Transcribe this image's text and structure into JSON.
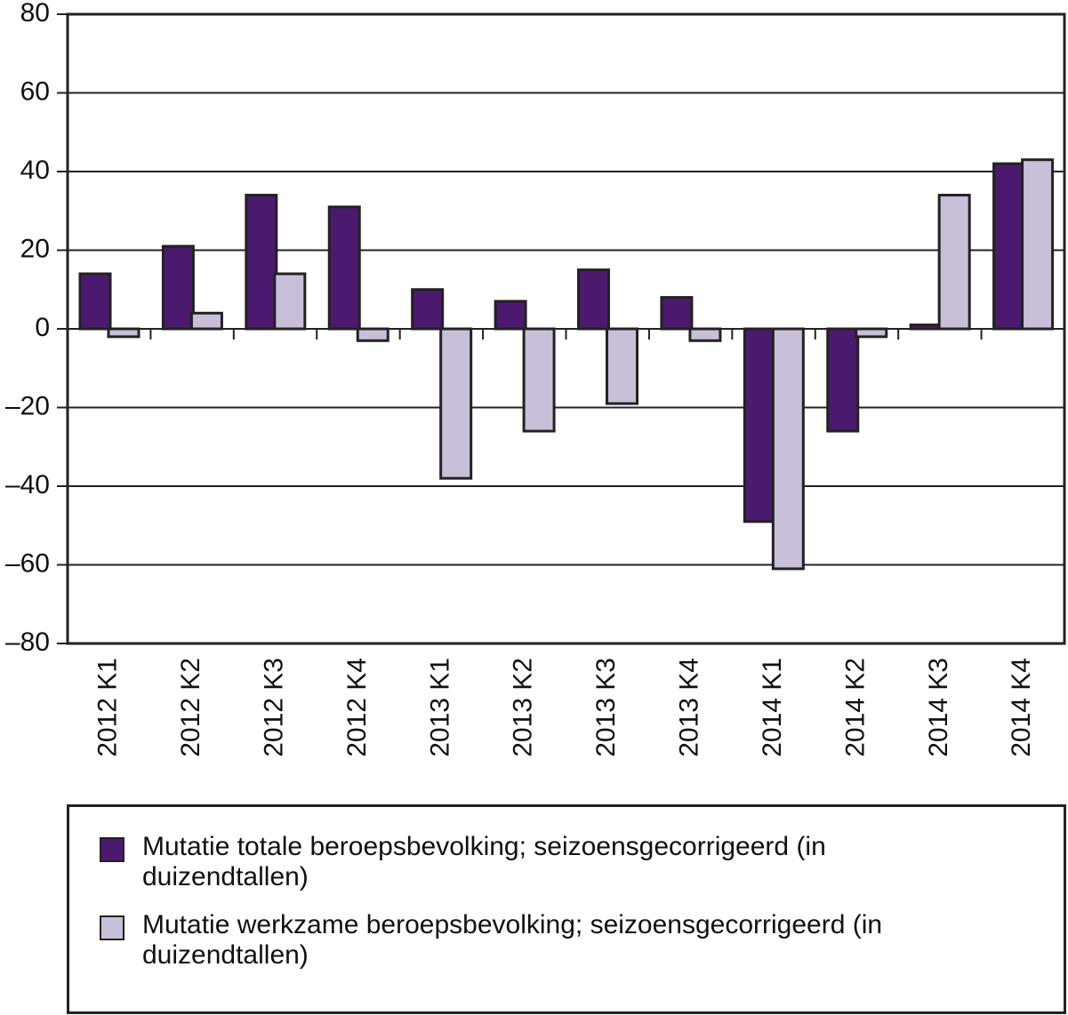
{
  "chart_data": {
    "type": "bar",
    "categories": [
      "2012 K1",
      "2012 K2",
      "2012 K3",
      "2012 K4",
      "2013 K1",
      "2013 K2",
      "2013 K3",
      "2013 K4",
      "2014 K1",
      "2014 K2",
      "2014 K3",
      "2014 K4"
    ],
    "series": [
      {
        "name": "Mutatie totale beroepsbevolking; seizoensgecorrigeerd (in duizendtallen)",
        "color": "#4b1a6e",
        "values": [
          14,
          21,
          34,
          31,
          10,
          7,
          15,
          8,
          -49,
          -26,
          1,
          42
        ]
      },
      {
        "name": "Mutatie werkzame beroepsbevolking; seizoensgecorrigeerd (in duizendtallen)",
        "color": "#c8bfd9",
        "values": [
          -2,
          4,
          14,
          -3,
          -38,
          -26,
          -19,
          -3,
          -61,
          -2,
          34,
          43
        ]
      }
    ],
    "ylim": [
      -80,
      80
    ],
    "yticks": [
      {
        "value": -80,
        "label": "–80"
      },
      {
        "value": -60,
        "label": "–60"
      },
      {
        "value": -40,
        "label": "–40"
      },
      {
        "value": -20,
        "label": "–20"
      },
      0,
      20,
      40,
      60,
      80
    ],
    "grid": true
  }
}
